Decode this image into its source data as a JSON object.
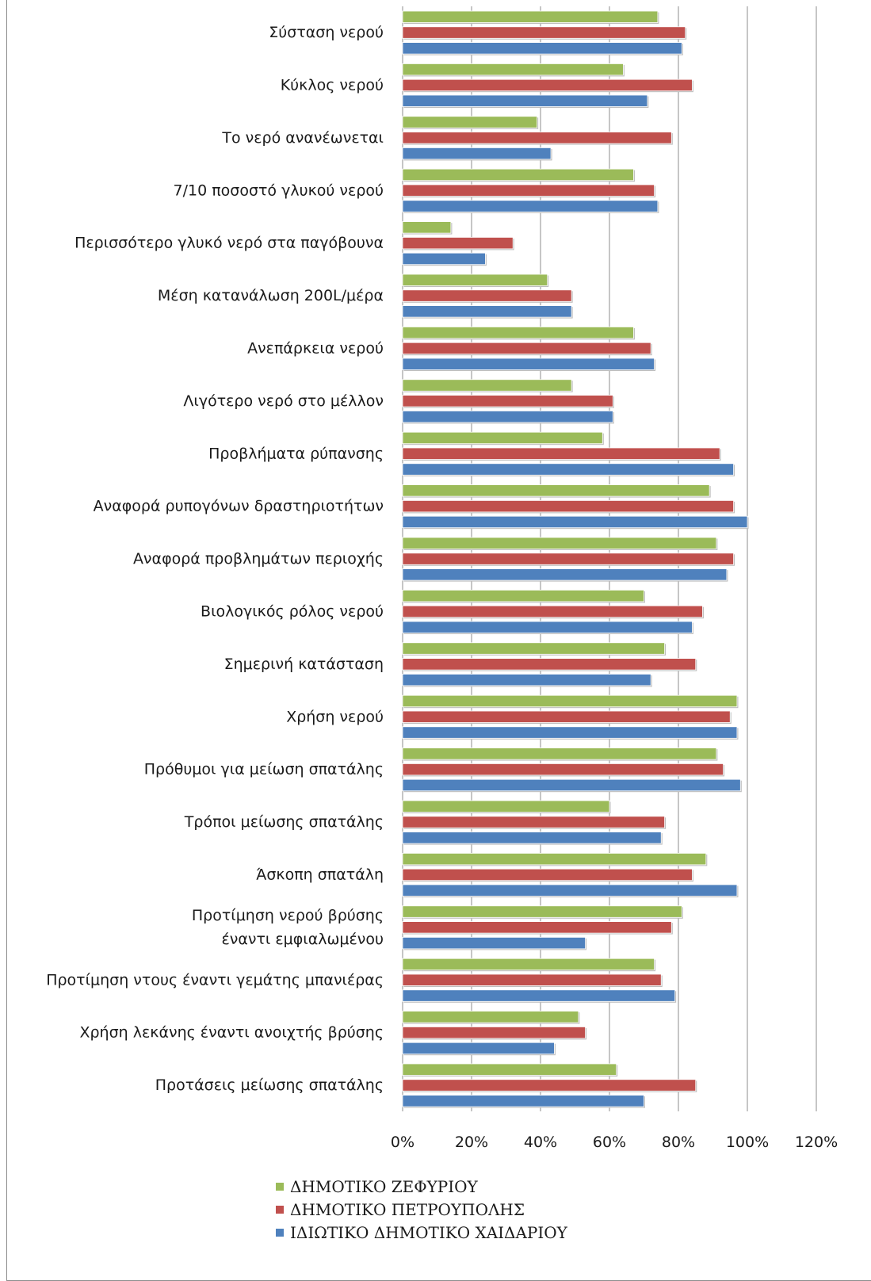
{
  "chart_data": {
    "type": "bar",
    "orientation": "horizontal",
    "categories": [
      "Σύσταση νερού",
      "Κύκλος νερού",
      "Το νερό ανανέωνεται",
      "7/10 ποσοστό γλυκού νερού",
      "Περισσότερο γλυκό νερό στα παγόβουνα",
      "Μέση κατανάλωση 200L/μέρα",
      "Ανεπάρκεια νερού",
      "Λιγότερο νερό στο μέλλον",
      "Προβλήματα ρύπανσης",
      "Αναφορά ρυπογόνων δραστηριοτήτων",
      "Αναφορά προβλημάτων περιοχής",
      "Βιολογικός ρόλος νερού",
      "Σημερινή κατάσταση",
      "Χρήση νερού",
      "Πρόθυμοι για μείωση σπατάλης",
      "Τρόποι μείωσης σπατάλης",
      "Άσκοπη σπατάλη",
      "Προτίμηση νερού βρύσης έναντι εμφιαλωμένου",
      "Προτίμηση ντους έναντι γεμάτης μπανιέρας",
      "Χρήση λεκάνης έναντι ανοιχτής βρύσης",
      "Προτάσεις μείωσης σπατάλης"
    ],
    "series": [
      {
        "name": "ΔΗΜΟΤΙΚΟ ΖΕΦΥΡΙΟΥ",
        "color": "#9bbb59",
        "values": [
          74,
          64,
          39,
          67,
          14,
          42,
          67,
          49,
          58,
          89,
          91,
          70,
          76,
          97,
          91,
          60,
          88,
          81,
          73,
          51,
          62
        ]
      },
      {
        "name": "ΔΗΜΟΤΙΚΟ ΠΕΤΡΟΥΠΟΛΗΣ",
        "color": "#c0504d",
        "values": [
          82,
          84,
          78,
          73,
          32,
          49,
          72,
          61,
          92,
          96,
          96,
          87,
          85,
          95,
          93,
          76,
          84,
          78,
          75,
          53,
          85
        ]
      },
      {
        "name": "ΙΔΙΩΤΙΚΟ ΔΗΜΟΤΙΚΟ ΧΑΙΔΑΡΙΟΥ",
        "color": "#4f81bd",
        "values": [
          81,
          71,
          43,
          74,
          24,
          49,
          73,
          61,
          96,
          100,
          94,
          84,
          72,
          97,
          98,
          75,
          97,
          53,
          79,
          44,
          70
        ]
      }
    ],
    "xlim": [
      0,
      120
    ],
    "xticks": [
      "0%",
      "20%",
      "40%",
      "60%",
      "80%",
      "100%",
      "120%"
    ],
    "grid": true,
    "legend_position": "bottom-left"
  }
}
